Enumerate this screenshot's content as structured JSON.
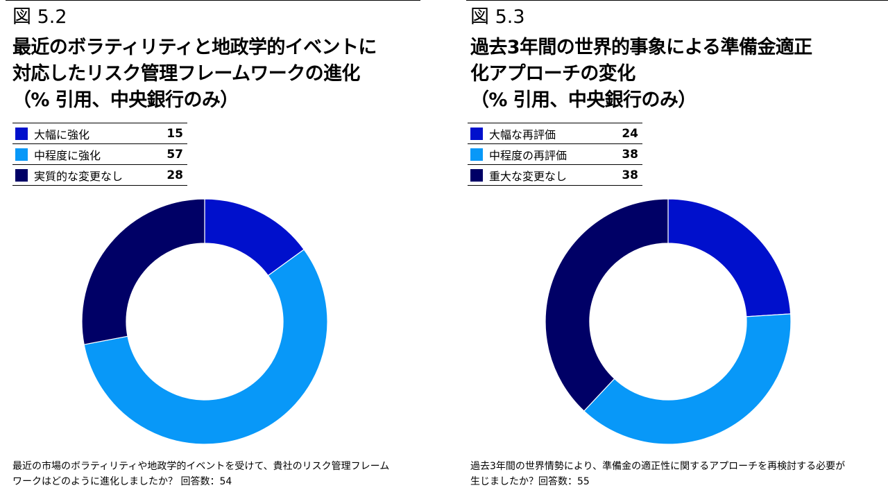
{
  "colors": {
    "dark_blue": "#0010CC",
    "light_blue": "#0898F8",
    "navy": "#000066"
  },
  "chart_data": [
    {
      "type": "pie",
      "figure_label": "図 5.2",
      "title_lines": [
        "最近のボラティリティと地政学的イベントに",
        "対応したリスク管理フレームワークの進化",
        "（% 引用、中央銀行のみ）"
      ],
      "categories": [
        "大幅に強化",
        "中程度に強化",
        "実質的な変更なし"
      ],
      "values": [
        15,
        57,
        28
      ],
      "colors": [
        "#0010CC",
        "#0898F8",
        "#000066"
      ],
      "legend": "top-left",
      "footnote_lines": [
        "最近の市場のボラティリティや地政学的イベントを受けて、貴社のリスク管理フレーム",
        "ワークはどのように進化しましたか？ 回答数：54"
      ]
    },
    {
      "type": "pie",
      "figure_label": "図 5.3",
      "title_lines": [
        "過去3年間の世界的事象による準備金適正",
        "化アプローチの変化",
        "（% 引用、中央銀行のみ）"
      ],
      "categories": [
        "大幅な再評価",
        "中程度の再評価",
        "重大な変更なし"
      ],
      "values": [
        24,
        38,
        38
      ],
      "colors": [
        "#0010CC",
        "#0898F8",
        "#000066"
      ],
      "legend": "top-left",
      "footnote_lines": [
        "過去3年間の世界情勢により、準備金の適正性に関するアプローチを再検討する必要が",
        "生じましたか？回答数：55"
      ]
    }
  ]
}
